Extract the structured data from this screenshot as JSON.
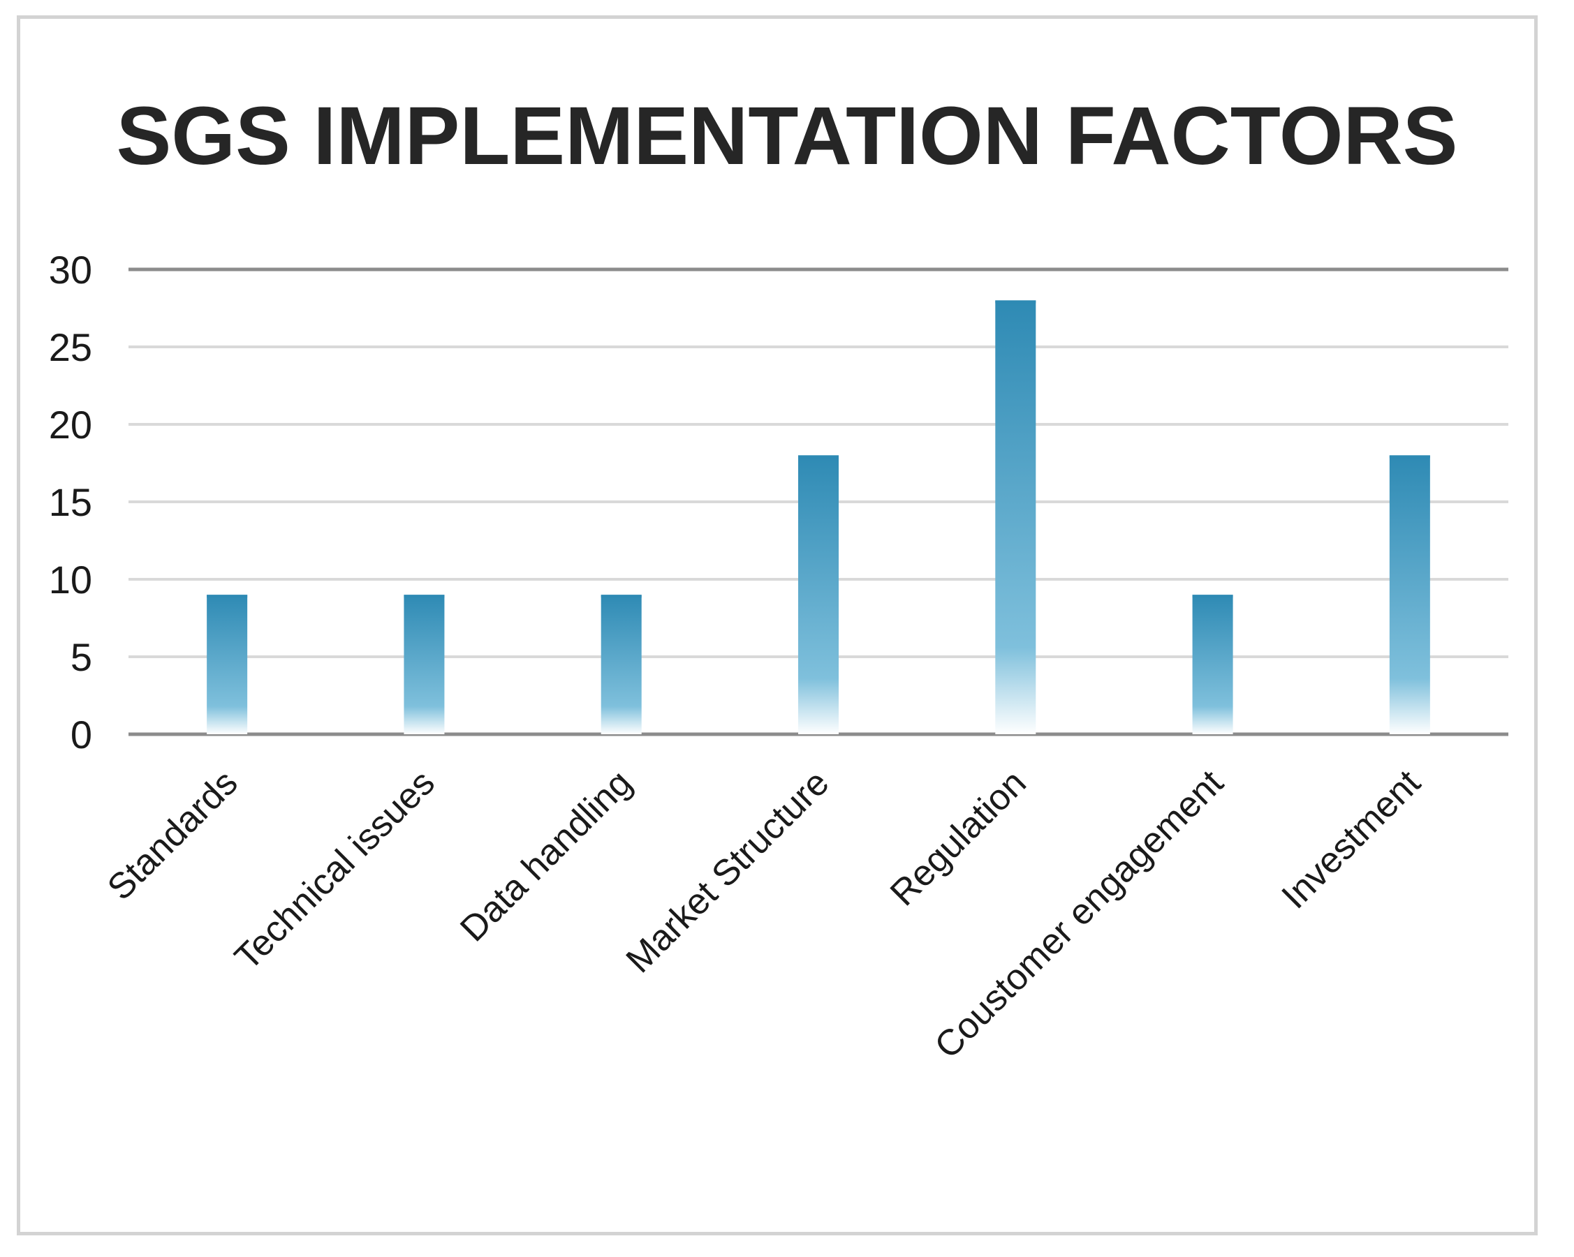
{
  "chart_data": {
    "type": "bar",
    "title": "SGS IMPLEMENTATION FACTORS",
    "xlabel": "",
    "ylabel": "",
    "categories": [
      "Standards",
      "Technical issues",
      "Data handling",
      "Market Structure",
      "Regulation",
      "Coustomer engagement",
      "Investment"
    ],
    "values": [
      9,
      9,
      9,
      18,
      28,
      9,
      18
    ],
    "ylim": [
      0,
      30
    ],
    "yticks": [
      0,
      5,
      10,
      15,
      20,
      25,
      30
    ],
    "grid": true,
    "legend": "none",
    "colors": {
      "bar_top": "#2e8ab4",
      "bar_fade": "#ffffff",
      "gridline": "#d9d9d9",
      "axis": "#8c8c8c"
    }
  }
}
